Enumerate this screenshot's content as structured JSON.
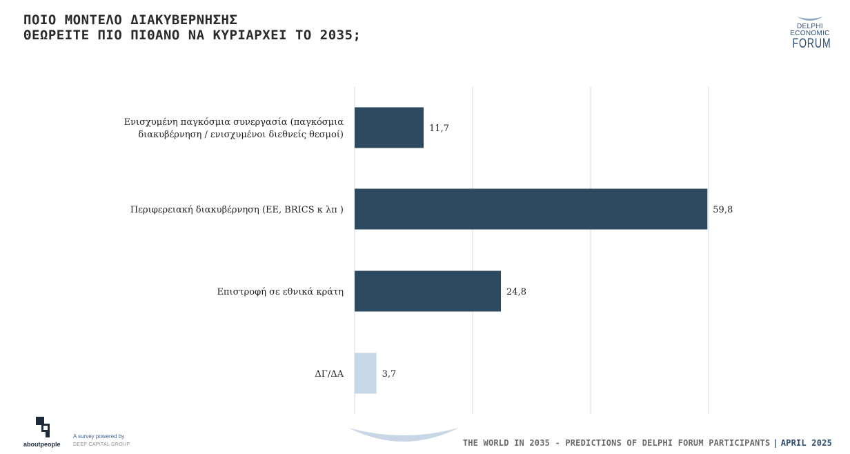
{
  "title_lines": [
    "ΠΟΙΟ ΜΟΝΤΕΛΟ ΔΙΑΚΥΒΕΡΝΗΣΗΣ",
    "ΘΕΩΡΕΙΤΕ ΠΙΟ ΠΙΘΑΝΟ ΝΑ ΚΥΡΙΑΡΧΕΙ ΤΟ 2035;"
  ],
  "logo": {
    "line1": "DELPHI",
    "line2": "ECONOMIC",
    "line3": "FORUM"
  },
  "chart_data": {
    "type": "bar",
    "orientation": "horizontal",
    "categories": [
      [
        "Ενισχυμένη παγκόσμια συνεργασία (παγκόσμια",
        "διακυβέρνηση / ενισχυμένοι διεθνείς θεσμοί)"
      ],
      [
        "Περιφερειακή διακυβέρνηση (ΕΕ, BRICS κ λπ )"
      ],
      [
        "Επιστροφή σε εθνικά κράτη"
      ],
      [
        "ΔΓ/ΔΑ"
      ]
    ],
    "values": [
      11.7,
      59.8,
      24.8,
      3.7
    ],
    "value_labels": [
      "11,7",
      "59,8",
      "24,8",
      "3,7"
    ],
    "colors": [
      "#2d4a60",
      "#2d4a60",
      "#2d4a60",
      "#c7d7e6"
    ],
    "xlim": [
      0,
      70
    ],
    "grid_at": [
      20,
      40,
      60
    ],
    "grid": true,
    "xlabel": "",
    "ylabel": ""
  },
  "footer": {
    "brand": "aboutpeople",
    "powered": "A survey powered by",
    "group": "DEEP CAPITAL GROUP",
    "caption": "THE WORLD IN 2035 - PREDICTIONS OF DELPHI FORUM PARTICIPANTS",
    "separator": "|",
    "date": "APRIL 2025"
  }
}
